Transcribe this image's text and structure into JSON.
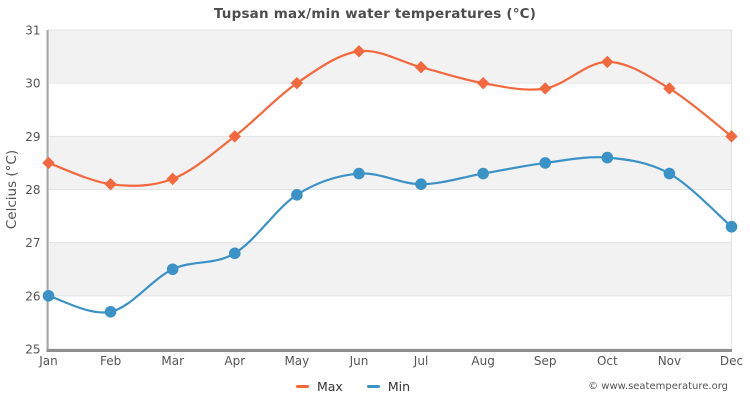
{
  "page": {
    "copyright": "© www.seatemperature.org"
  },
  "chart_data": {
    "type": "line",
    "title": "Tupsan max/min water temperatures (°C)",
    "xlabel": "",
    "ylabel": "Celcius (°C)",
    "categories": [
      "Jan",
      "Feb",
      "Mar",
      "Apr",
      "May",
      "Jun",
      "Jul",
      "Aug",
      "Sep",
      "Oct",
      "Nov",
      "Dec"
    ],
    "series": [
      {
        "name": "Max",
        "color": "#f4683e",
        "marker": "diamond",
        "values": [
          28.5,
          28.1,
          28.2,
          29.0,
          30.0,
          30.6,
          30.3,
          30.0,
          29.9,
          30.4,
          29.9,
          29.0
        ]
      },
      {
        "name": "Min",
        "color": "#3b92c6",
        "marker": "circle",
        "values": [
          26.0,
          25.7,
          26.5,
          26.8,
          27.9,
          28.3,
          28.1,
          28.3,
          28.5,
          28.6,
          28.3,
          27.3
        ]
      }
    ],
    "ylim": [
      25,
      31
    ],
    "ytick_step": 1,
    "yticks": [
      25,
      26,
      27,
      28,
      29,
      30,
      31
    ],
    "grid": "horizontal",
    "banded_background": true,
    "band_color": "#f2f2f2",
    "gridline_color": "#e3e3e3",
    "legend_position": "bottom",
    "curve": "smooth"
  }
}
